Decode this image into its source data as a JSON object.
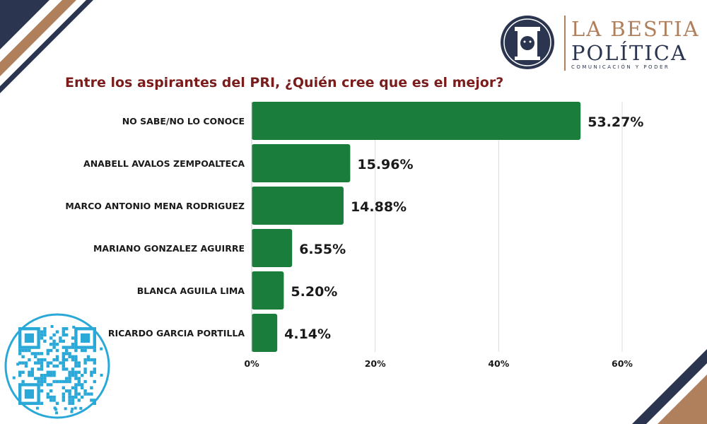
{
  "brand": {
    "line1": "LA BESTIA",
    "line2": "POLÍTICA",
    "tagline": "COMUNICACIÓN Y PODER",
    "navy": "#2b3550",
    "gold": "#b07f5c",
    "icon": "lion-column-emblem"
  },
  "qr_icon": "qr-code-icon",
  "chart_data": {
    "type": "bar",
    "orientation": "horizontal",
    "title": "Entre los aspirantes del PRI, ¿Quién cree que es el mejor?",
    "categories": [
      "NO SABE/NO LO CONOCE",
      "ANABELL AVALOS ZEMPOALTECA",
      "MARCO ANTONIO MENA RODRIGUEZ",
      "MARIANO GONZALEZ AGUIRRE",
      "BLANCA AGUILA LIMA",
      "RICARDO GARCIA PORTILLA"
    ],
    "values": [
      53.27,
      15.96,
      14.88,
      6.55,
      5.2,
      4.14
    ],
    "value_labels": [
      "53.27%",
      "15.96%",
      "14.88%",
      "6.55%",
      "5.20%",
      "4.14%"
    ],
    "xticks": [
      "0%",
      "20%",
      "40%",
      "60%"
    ],
    "xtick_values": [
      0,
      20,
      40,
      60
    ],
    "xlim": [
      0,
      60
    ],
    "xlabel": "",
    "ylabel": "",
    "grid": true,
    "bar_color": "#1b7d3b",
    "title_color": "#7a1c1c"
  }
}
